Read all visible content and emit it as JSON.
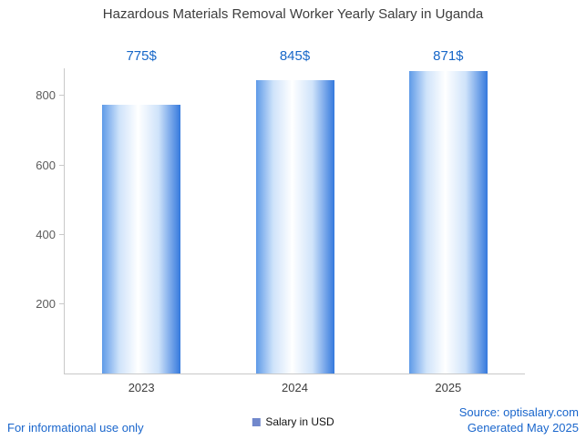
{
  "title": "Hazardous Materials Removal Worker Yearly Salary in Uganda",
  "legend": {
    "label": "Salary in USD",
    "marker_color": "#7188cc"
  },
  "footer": {
    "left": "For informational use only",
    "source": "Source: optisalary.com",
    "generated": "Generated May 2025"
  },
  "colors": {
    "title": "#3d3d3d",
    "value_label": "#1767c8",
    "footer_text": "#1a66cc",
    "bar_left": "#5e9ae8",
    "bar_mid": "#ffffff",
    "bar_inner": "#cfe3fa",
    "bar_right": "#3579dd",
    "axis": "#c9c9c9",
    "tick_label": "#5b5b5b"
  },
  "chart_data": {
    "type": "bar",
    "title": "Hazardous Materials Removal Worker Yearly Salary in Uganda",
    "categories": [
      "2023",
      "2024",
      "2025"
    ],
    "values": [
      775,
      845,
      871
    ],
    "value_labels": [
      "775$",
      "845$",
      "871$"
    ],
    "series": [
      {
        "name": "Salary in USD",
        "values": [
          775,
          845,
          871
        ]
      }
    ],
    "xlabel": "",
    "ylabel": "",
    "ylim": [
      0,
      880
    ],
    "y_ticks": [
      200,
      400,
      600,
      800
    ],
    "grid": false,
    "legend_position": "bottom"
  }
}
